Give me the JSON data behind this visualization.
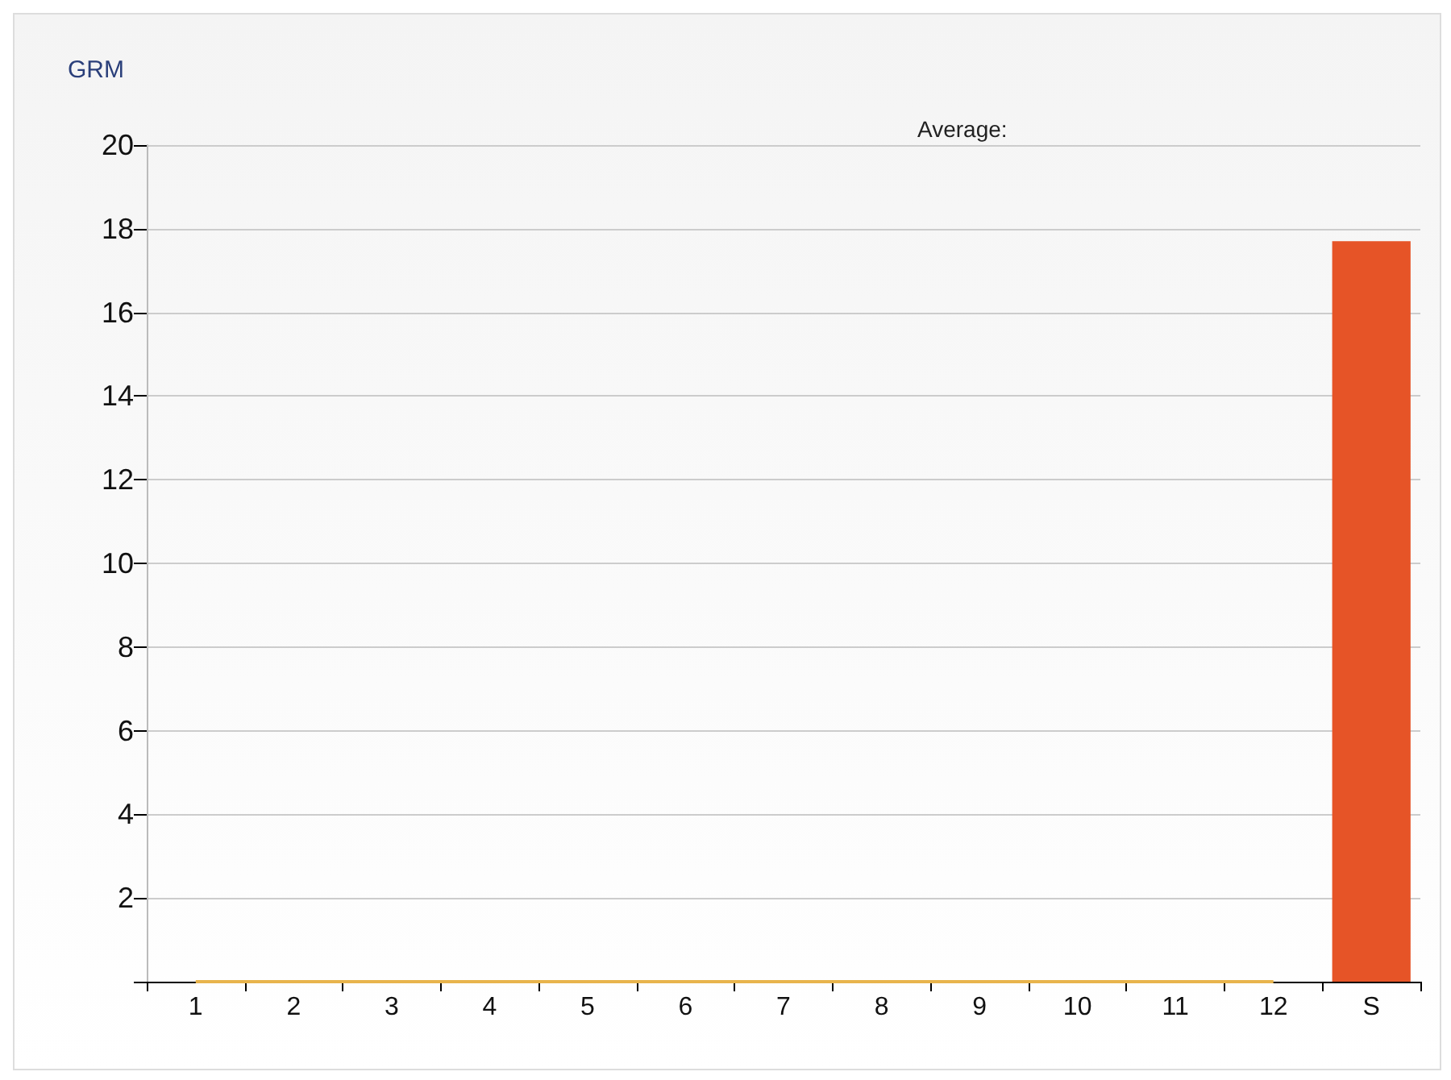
{
  "chart_data": {
    "type": "bar",
    "title": "GRM",
    "annotations": [
      "Average:"
    ],
    "categories": [
      "1",
      "2",
      "3",
      "4",
      "5",
      "6",
      "7",
      "8",
      "9",
      "10",
      "11",
      "12",
      "S"
    ],
    "series": [
      {
        "color": "#e65427",
        "values": [
          0,
          0,
          0,
          0,
          0,
          0,
          0,
          0,
          0,
          0,
          0,
          0,
          17.7
        ]
      },
      {
        "type": "line",
        "color": "#e8b44c",
        "values": [
          0,
          0,
          0,
          0,
          0,
          0,
          0,
          0,
          0,
          0,
          0,
          0,
          null
        ]
      }
    ],
    "ylim": [
      0,
      20
    ],
    "yticks": [
      {
        "value": 0,
        "label": null
      },
      2,
      4,
      6,
      8,
      10,
      12,
      14,
      16,
      18,
      20
    ],
    "grid": "y",
    "marker": "none"
  }
}
